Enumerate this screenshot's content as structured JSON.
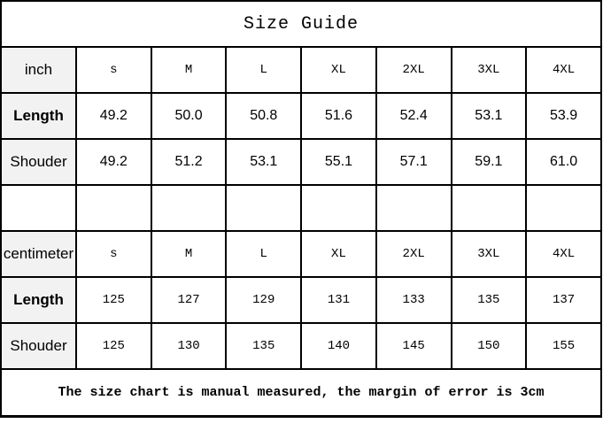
{
  "title": "Size Guide",
  "sizes": [
    "s",
    "M",
    "L",
    "XL",
    "2XL",
    "3XL",
    "4XL"
  ],
  "inch": {
    "unit_label": "inch",
    "rows": [
      {
        "label": "Length",
        "values": [
          "49.2",
          "50.0",
          "50.8",
          "51.6",
          "52.4",
          "53.1",
          "53.9"
        ]
      },
      {
        "label": "Shouder",
        "values": [
          "49.2",
          "51.2",
          "53.1",
          "55.1",
          "57.1",
          "59.1",
          "61.0"
        ]
      }
    ]
  },
  "centimeter": {
    "unit_label": "centimeter",
    "rows": [
      {
        "label": "Length",
        "values": [
          "125",
          "127",
          "129",
          "131",
          "133",
          "135",
          "137"
        ]
      },
      {
        "label": "Shouder",
        "values": [
          "125",
          "130",
          "135",
          "140",
          "145",
          "150",
          "155"
        ]
      }
    ]
  },
  "footer": "The size chart is manual measured, the margin of error is 3cm"
}
